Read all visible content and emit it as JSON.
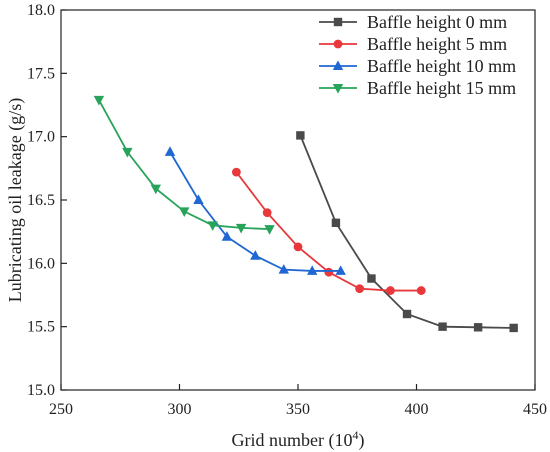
{
  "chart_data": {
    "type": "line",
    "title": "",
    "xlabel": "Grid number (10",
    "xlabel_sup": "4",
    "xlabel_close": ")",
    "ylabel": "Lubricating oil leakage (g/s)",
    "xlim": [
      250,
      450
    ],
    "ylim": [
      15.0,
      18.0
    ],
    "x_ticks": [
      250,
      300,
      350,
      400,
      450
    ],
    "y_ticks": [
      15.0,
      15.5,
      16.0,
      16.5,
      17.0,
      17.5,
      18.0
    ],
    "x_tick_labels": [
      "250",
      "300",
      "350",
      "400",
      "450"
    ],
    "y_tick_labels": [
      "15.0",
      "15.5",
      "16.0",
      "16.5",
      "17.0",
      "17.5",
      "18.0"
    ],
    "grid": false,
    "legend_position": "top-right",
    "series": [
      {
        "name": "Baffle height 0 mm",
        "color": "#4a4a4a",
        "marker": "square",
        "x": [
          351,
          366,
          381,
          396,
          411,
          426,
          441
        ],
        "y": [
          17.01,
          16.32,
          15.88,
          15.6,
          15.5,
          15.495,
          15.49
        ]
      },
      {
        "name": "Baffle height 5 mm",
        "color": "#e8383b",
        "marker": "circle",
        "x": [
          324,
          337,
          350,
          363,
          376,
          389,
          402
        ],
        "y": [
          16.72,
          16.4,
          16.13,
          15.93,
          15.8,
          15.785,
          15.785
        ]
      },
      {
        "name": "Baffle height 10 mm",
        "color": "#1f67d2",
        "marker": "triangle-up",
        "x": [
          296,
          308,
          320,
          332,
          344,
          356,
          368
        ],
        "y": [
          16.88,
          16.5,
          16.21,
          16.06,
          15.95,
          15.94,
          15.94
        ]
      },
      {
        "name": "Baffle height 15 mm",
        "color": "#27a45a",
        "marker": "triangle-down",
        "x": [
          266,
          278,
          290,
          302,
          314,
          326,
          338
        ],
        "y": [
          17.29,
          16.88,
          16.59,
          16.41,
          16.3,
          16.28,
          16.27
        ]
      }
    ]
  }
}
